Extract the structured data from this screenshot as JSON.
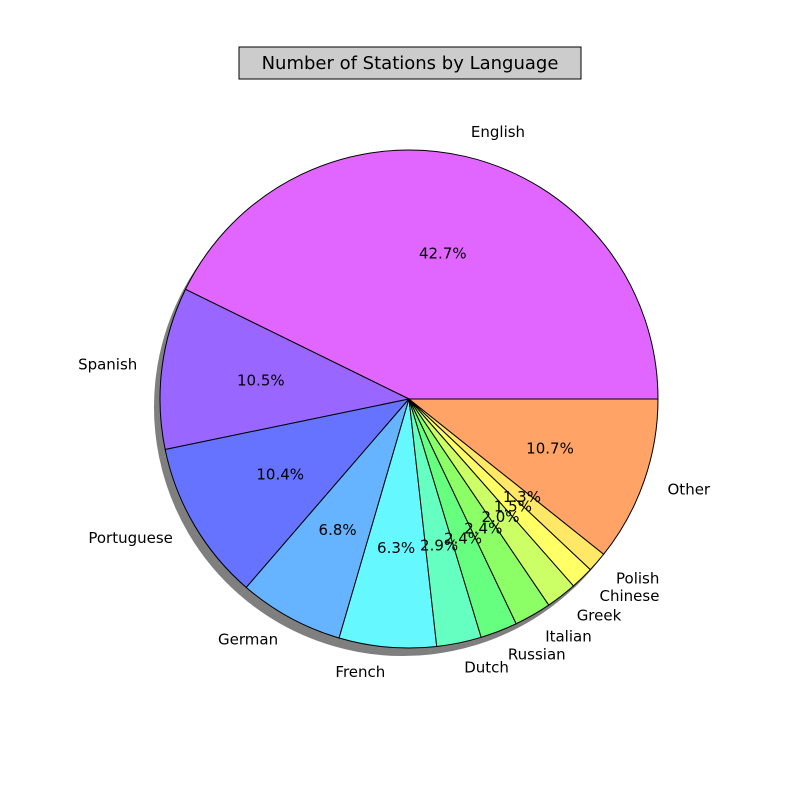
{
  "chart_data": {
    "type": "pie",
    "title": "Number of Stations by Language",
    "categories": [
      "English",
      "Spanish",
      "Portuguese",
      "German",
      "French",
      "Dutch",
      "Russian",
      "Italian",
      "Greek",
      "Chinese",
      "Polish",
      "Other"
    ],
    "values": [
      42.7,
      10.5,
      10.4,
      6.8,
      6.3,
      2.9,
      2.4,
      2.4,
      2.0,
      1.5,
      1.3,
      10.7
    ],
    "value_labels": [
      "42.7%",
      "10.5%",
      "10.4%",
      "6.8%",
      "6.3%",
      "2.9%",
      "2.4%",
      "2.4%",
      "2.0%",
      "1.5%",
      "1.3%",
      "10.7%"
    ],
    "colors": [
      "#e066ff",
      "#9966ff",
      "#6673ff",
      "#66b3ff",
      "#66f8ff",
      "#66ffc2",
      "#66ff80",
      "#8cff66",
      "#ccff66",
      "#ffff66",
      "#ffe866",
      "#ffa366",
      "#ff6666"
    ],
    "start_angle_deg": 0,
    "direction": "counterclockwise",
    "shadow": true,
    "legend": "none"
  }
}
